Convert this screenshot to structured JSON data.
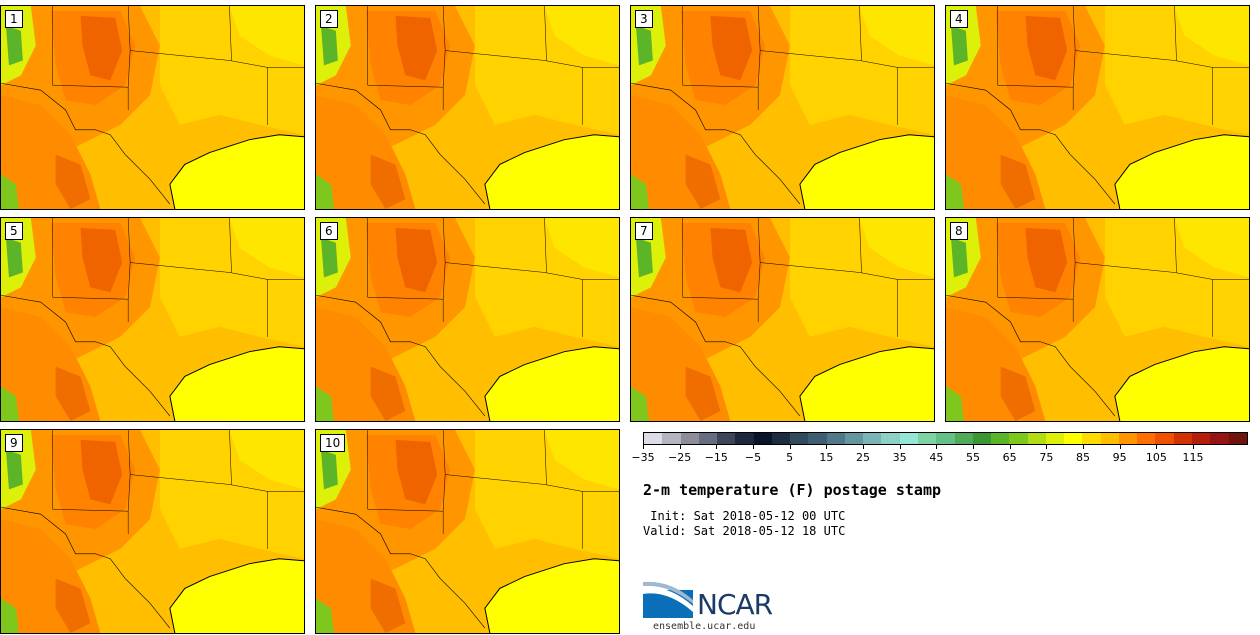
{
  "panels": [
    {
      "label": "1"
    },
    {
      "label": "2"
    },
    {
      "label": "3"
    },
    {
      "label": "4"
    },
    {
      "label": "5"
    },
    {
      "label": "6"
    },
    {
      "label": "7"
    },
    {
      "label": "8"
    },
    {
      "label": "9"
    },
    {
      "label": "10"
    }
  ],
  "colorbar": {
    "colors": [
      "#dcdce6",
      "#b4b4be",
      "#8c8c9a",
      "#646e7e",
      "#3c4656",
      "#1e283c",
      "#0a1428",
      "#1e2c42",
      "#324a5e",
      "#3e5e72",
      "#507888",
      "#64969e",
      "#7ab4b4",
      "#8ed0c6",
      "#96e6d6",
      "#7ed2a4",
      "#64c086",
      "#50aa5a",
      "#3c9632",
      "#5cb428",
      "#7ec81e",
      "#b4dc14",
      "#dcf00a",
      "#ffff00",
      "#ffdc00",
      "#ffbe00",
      "#ff9600",
      "#ff6e00",
      "#f05000",
      "#d23200",
      "#b41e0a",
      "#961414",
      "#6e140a"
    ],
    "tick_labels": [
      "−35",
      "−25",
      "−15",
      "−5",
      "5",
      "15",
      "25",
      "35",
      "45",
      "55",
      "65",
      "75",
      "85",
      "95",
      "105",
      "115"
    ]
  },
  "title": "2-m temperature (F) postage stamp",
  "init_line": " Init: Sat 2018-05-12 00 UTC",
  "valid_line": "Valid: Sat 2018-05-12 18 UTC",
  "logo": {
    "text": "NCAR",
    "url": "ensemble.ucar.edu"
  }
}
